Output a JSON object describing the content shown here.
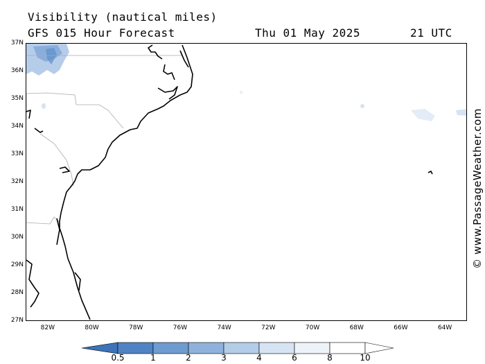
{
  "header": {
    "title": "Visibility (nautical miles)",
    "subtitle": "GFS 015 Hour Forecast",
    "date": "Thu 01 May 2025",
    "hour": "21 UTC"
  },
  "map": {
    "lat_labels": [
      "37N",
      "36N",
      "35N",
      "34N",
      "33N",
      "32N",
      "31N",
      "30N",
      "29N",
      "28N",
      "27N"
    ],
    "lon_labels": [
      "82W",
      "80W",
      "78W",
      "76W",
      "74W",
      "72W",
      "70W",
      "68W",
      "66W",
      "64W"
    ],
    "lat_range": [
      27,
      37
    ],
    "lon_range": [
      -83,
      -63
    ],
    "credit": "© www.PassageWeather.com"
  },
  "legend": {
    "labels": [
      "0.5",
      "1",
      "2",
      "3",
      "4",
      "6",
      "8",
      "10"
    ],
    "colors": [
      "#3d73b8",
      "#4f83c4",
      "#6e9bd0",
      "#8eb2dc",
      "#b3cce8",
      "#d6e3f2",
      "#eef3fa",
      "#ffffff"
    ]
  }
}
